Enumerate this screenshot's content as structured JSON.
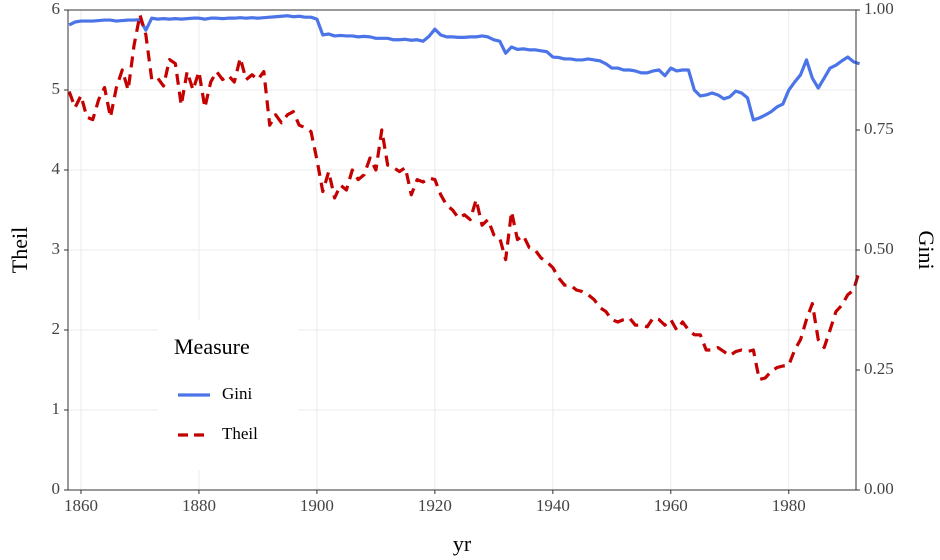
{
  "chart_data": {
    "type": "line",
    "x_label": "yr",
    "y_label": "Theil",
    "y2_label": "Gini",
    "x": [
      1858,
      1859,
      1860,
      1861,
      1862,
      1863,
      1864,
      1865,
      1866,
      1867,
      1868,
      1869,
      1870,
      1871,
      1872,
      1873,
      1874,
      1875,
      1876,
      1877,
      1878,
      1879,
      1880,
      1881,
      1882,
      1883,
      1884,
      1885,
      1886,
      1887,
      1888,
      1889,
      1890,
      1891,
      1892,
      1893,
      1894,
      1895,
      1896,
      1897,
      1898,
      1899,
      1900,
      1901,
      1902,
      1903,
      1904,
      1905,
      1906,
      1907,
      1908,
      1909,
      1910,
      1911,
      1912,
      1913,
      1914,
      1915,
      1916,
      1917,
      1918,
      1919,
      1920,
      1921,
      1922,
      1923,
      1924,
      1925,
      1926,
      1927,
      1928,
      1929,
      1930,
      1931,
      1932,
      1933,
      1934,
      1935,
      1936,
      1937,
      1938,
      1939,
      1940,
      1941,
      1942,
      1943,
      1944,
      1945,
      1946,
      1947,
      1948,
      1949,
      1950,
      1951,
      1952,
      1953,
      1954,
      1955,
      1956,
      1957,
      1958,
      1959,
      1960,
      1961,
      1962,
      1963,
      1964,
      1965,
      1966,
      1967,
      1968,
      1969,
      1970,
      1971,
      1972,
      1973,
      1974,
      1975,
      1976,
      1977,
      1978,
      1979,
      1980,
      1981,
      1982,
      1983,
      1984,
      1985,
      1986,
      1987,
      1988,
      1989,
      1990,
      1991,
      1992
    ],
    "series": [
      {
        "name": "Gini",
        "color": "#4a74e8",
        "linestyle": "solid",
        "axis": "y2",
        "values": [
          0.969,
          0.975,
          0.977,
          0.977,
          0.977,
          0.978,
          0.979,
          0.979,
          0.977,
          0.978,
          0.979,
          0.979,
          0.98,
          0.958,
          0.983,
          0.981,
          0.982,
          0.981,
          0.982,
          0.981,
          0.982,
          0.983,
          0.983,
          0.981,
          0.983,
          0.983,
          0.982,
          0.983,
          0.983,
          0.984,
          0.983,
          0.984,
          0.983,
          0.984,
          0.985,
          0.986,
          0.987,
          0.988,
          0.986,
          0.987,
          0.985,
          0.985,
          0.981,
          0.948,
          0.95,
          0.946,
          0.947,
          0.946,
          0.946,
          0.944,
          0.945,
          0.944,
          0.941,
          0.941,
          0.941,
          0.938,
          0.938,
          0.939,
          0.937,
          0.938,
          0.935,
          0.945,
          0.96,
          0.948,
          0.944,
          0.944,
          0.943,
          0.943,
          0.944,
          0.944,
          0.946,
          0.944,
          0.938,
          0.935,
          0.91,
          0.923,
          0.918,
          0.919,
          0.917,
          0.917,
          0.915,
          0.913,
          0.902,
          0.901,
          0.898,
          0.898,
          0.896,
          0.896,
          0.898,
          0.896,
          0.894,
          0.888,
          0.879,
          0.879,
          0.875,
          0.875,
          0.873,
          0.869,
          0.869,
          0.873,
          0.875,
          0.863,
          0.879,
          0.873,
          0.875,
          0.875,
          0.833,
          0.821,
          0.823,
          0.827,
          0.823,
          0.815,
          0.819,
          0.831,
          0.827,
          0.817,
          0.771,
          0.775,
          0.781,
          0.788,
          0.798,
          0.804,
          0.833,
          0.85,
          0.865,
          0.896,
          0.858,
          0.8375,
          0.858,
          0.879,
          0.885,
          0.894,
          0.902,
          0.892,
          0.888
        ]
      },
      {
        "name": "Theil",
        "color": "#c40000",
        "linestyle": "dashed",
        "values": [
          4.98,
          4.78,
          4.93,
          4.66,
          4.63,
          4.88,
          5.03,
          4.66,
          5.03,
          5.25,
          5.0,
          5.56,
          5.94,
          5.69,
          5.13,
          5.15,
          5.05,
          5.38,
          5.33,
          4.81,
          5.23,
          5.0,
          5.23,
          4.78,
          5.1,
          5.23,
          5.13,
          5.18,
          5.1,
          5.4,
          5.13,
          5.19,
          5.13,
          5.23,
          4.56,
          4.69,
          4.59,
          4.69,
          4.73,
          4.56,
          4.53,
          4.48,
          4.13,
          3.73,
          3.98,
          3.65,
          3.81,
          3.75,
          4.0,
          3.88,
          3.94,
          4.15,
          4.0,
          4.5,
          4.06,
          4.03,
          3.98,
          4.03,
          3.69,
          3.88,
          3.85,
          3.9,
          3.88,
          3.69,
          3.56,
          3.5,
          3.4,
          3.44,
          3.38,
          3.63,
          3.31,
          3.38,
          3.19,
          3.15,
          2.88,
          3.48,
          3.13,
          3.18,
          3.03,
          3.0,
          2.9,
          2.85,
          2.78,
          2.65,
          2.56,
          2.56,
          2.5,
          2.48,
          2.44,
          2.38,
          2.28,
          2.23,
          2.13,
          2.1,
          2.13,
          2.15,
          2.06,
          2.06,
          2.04,
          2.15,
          2.13,
          2.06,
          2.13,
          2.0,
          2.1,
          2.0,
          1.94,
          1.94,
          1.75,
          1.75,
          1.78,
          1.73,
          1.68,
          1.73,
          1.75,
          1.73,
          1.75,
          1.38,
          1.4,
          1.48,
          1.53,
          1.55,
          1.56,
          1.75,
          1.88,
          2.13,
          2.33,
          1.88,
          1.78,
          2.0,
          2.23,
          2.31,
          2.44,
          2.5,
          2.75
        ]
      }
    ],
    "xlim": [
      1857.8,
      1991.4
    ],
    "xticks": [
      1860,
      1880,
      1900,
      1920,
      1940,
      1960,
      1980
    ],
    "ylim": [
      0,
      6
    ],
    "yticks": [
      0,
      1,
      2,
      3,
      4,
      5,
      6
    ],
    "y2lim": [
      0,
      1
    ],
    "y2ticks": [
      {
        "value": 0,
        "label": "0.00"
      },
      {
        "value": 0.25,
        "label": "0.25"
      },
      {
        "value": 0.5,
        "label": "0.50"
      },
      {
        "value": 0.75,
        "label": "0.75"
      },
      {
        "value": 1,
        "label": "1.00"
      }
    ],
    "grid": true,
    "legend_title": "Measure",
    "legend_position": "bottom-left"
  }
}
